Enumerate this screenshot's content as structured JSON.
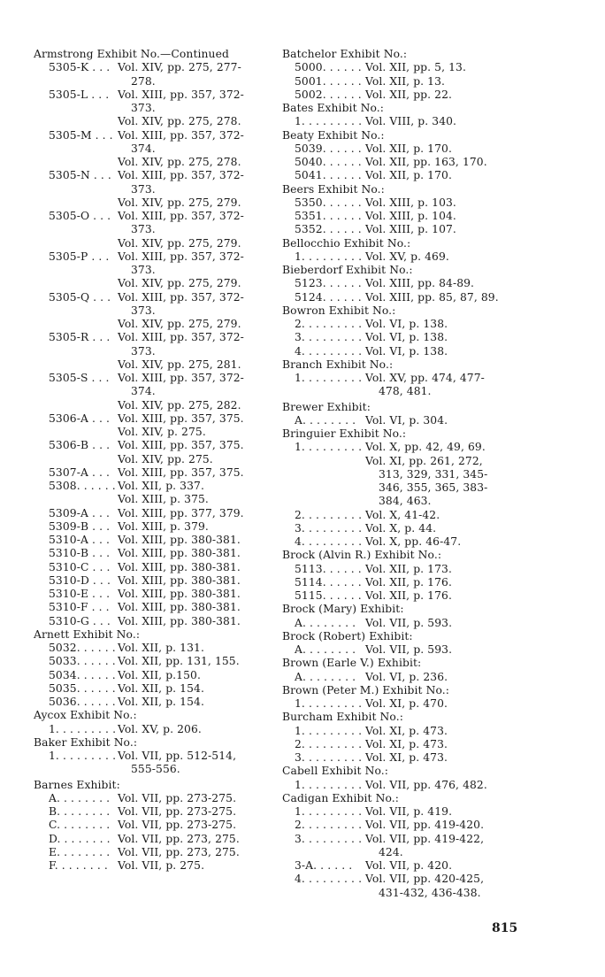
{
  "page_number": "815",
  "columns": [
    {
      "lines": [
        {
          "t": "h",
          "k": "Armstrong Exhibit No.—Continued"
        },
        {
          "t": "e",
          "k": "5305-K . . .",
          "v": "Vol. XIV, pp. 275, 277-"
        },
        {
          "t": "c",
          "v": "278."
        },
        {
          "t": "e",
          "k": "5305-L . . .",
          "v": "Vol. XIII, pp. 357, 372-"
        },
        {
          "t": "c",
          "v": "373."
        },
        {
          "t": "e",
          "k": "",
          "v": "Vol. XIV, pp. 275, 278."
        },
        {
          "t": "e",
          "k": "5305-M . . .",
          "v": "Vol. XIII, pp. 357, 372-"
        },
        {
          "t": "c",
          "v": "374."
        },
        {
          "t": "e",
          "k": "",
          "v": "Vol. XIV, pp. 275, 278."
        },
        {
          "t": "e",
          "k": "5305-N . . .",
          "v": "Vol. XIII, pp. 357, 372-"
        },
        {
          "t": "c",
          "v": "373."
        },
        {
          "t": "e",
          "k": "",
          "v": "Vol. XIV, pp. 275, 279."
        },
        {
          "t": "e",
          "k": "5305-O . . .",
          "v": "Vol. XIII, pp. 357, 372-"
        },
        {
          "t": "c",
          "v": "373."
        },
        {
          "t": "e",
          "k": "",
          "v": "Vol. XIV, pp. 275, 279."
        },
        {
          "t": "e",
          "k": "5305-P . . .",
          "v": "Vol. XIII, pp. 357, 372-"
        },
        {
          "t": "c",
          "v": "373."
        },
        {
          "t": "e",
          "k": "",
          "v": "Vol. XIV, pp. 275, 279."
        },
        {
          "t": "e",
          "k": "5305-Q . . .",
          "v": "Vol. XIII, pp. 357, 372-"
        },
        {
          "t": "c",
          "v": "373."
        },
        {
          "t": "e",
          "k": "",
          "v": "Vol. XIV, pp.  275, 279."
        },
        {
          "t": "e",
          "k": "5305-R . . .",
          "v": "Vol. XIII, pp. 357, 372-"
        },
        {
          "t": "c",
          "v": "373."
        },
        {
          "t": "e",
          "k": "",
          "v": "Vol. XIV, pp. 275, 281."
        },
        {
          "t": "e",
          "k": "5305-S . . .",
          "v": "Vol. XIII, pp. 357, 372-"
        },
        {
          "t": "c",
          "v": "374."
        },
        {
          "t": "e",
          "k": "",
          "v": "Vol. XIV, pp. 275, 282."
        },
        {
          "t": "e",
          "k": "5306-A . . .",
          "v": "Vol. XIII, pp. 357, 375."
        },
        {
          "t": "e",
          "k": "",
          "v": "Vol. XIV, p. 275."
        },
        {
          "t": "e",
          "k": "5306-B . . .",
          "v": "Vol. XIII, pp. 357, 375."
        },
        {
          "t": "e",
          "k": "",
          "v": "Vol. XIV, pp. 275."
        },
        {
          "t": "e",
          "k": "5307-A . . .",
          "v": "Vol. XIII, pp. 357, 375."
        },
        {
          "t": "e",
          "k": "5308. . . . . .",
          "v": "Vol. XII, p. 337."
        },
        {
          "t": "e",
          "k": "",
          "v": "Vol. XIII, p. 375."
        },
        {
          "t": "e",
          "k": "5309-A . . .",
          "v": "Vol. XIII, pp. 377, 379."
        },
        {
          "t": "e",
          "k": "5309-B . . .",
          "v": "Vol. XIII, p. 379."
        },
        {
          "t": "e",
          "k": "5310-A . . .",
          "v": "Vol. XIII, pp. 380-381."
        },
        {
          "t": "e",
          "k": "5310-B . . .",
          "v": "Vol. XIII, pp. 380-381."
        },
        {
          "t": "e",
          "k": "5310-C . . .",
          "v": "Vol. XIII, pp. 380-381."
        },
        {
          "t": "e",
          "k": "5310-D . . .",
          "v": "Vol. XIII, pp. 380-381."
        },
        {
          "t": "e",
          "k": "5310-E . . .",
          "v": "Vol. XIII, pp. 380-381."
        },
        {
          "t": "e",
          "k": "5310-F . . .",
          "v": "Vol. XIII, pp. 380-381."
        },
        {
          "t": "e",
          "k": "5310-G . . .",
          "v": "Vol. XIII, pp. 380-381."
        },
        {
          "t": "h",
          "k": "Arnett Exhibit No.:"
        },
        {
          "t": "e",
          "k": "5032. . . . . .",
          "v": "Vol. XII, p. 131."
        },
        {
          "t": "e",
          "k": "5033. . . . . .",
          "v": "Vol. XII, pp. 131, 155."
        },
        {
          "t": "e",
          "k": "5034. . . . . .",
          "v": "Vol. XII, p.150."
        },
        {
          "t": "e",
          "k": "5035. . . . . .",
          "v": "Vol. XII, p. 154."
        },
        {
          "t": "e",
          "k": "5036. . . . . .",
          "v": "Vol. XII, p. 154."
        },
        {
          "t": "h",
          "k": "Aycox Exhibit No.:"
        },
        {
          "t": "e",
          "k": "1. . . . . . . . .",
          "v": "Vol. XV, p. 206."
        },
        {
          "t": "h",
          "k": "Baker Exhibit No.:"
        },
        {
          "t": "e",
          "k": "1. . . . . . . . .",
          "v": "Vol.  VII,  pp.  512-514,"
        },
        {
          "t": "c",
          "v": "555-556."
        },
        {
          "t": "h",
          "k": "Barnes Exhibit:",
          "gap": true
        },
        {
          "t": "e",
          "k": "A. . . . . . . .",
          "v": "Vol. VII, pp. 273-275."
        },
        {
          "t": "e",
          "k": "B. . . . . . . .",
          "v": "Vol. VII, pp. 273-275."
        },
        {
          "t": "e",
          "k": "C. . . . . . . .",
          "v": "Vol. VII, pp. 273-275."
        },
        {
          "t": "e",
          "k": "D. . . . . . . .",
          "v": "Vol. VII, pp. 273, 275."
        },
        {
          "t": "e",
          "k": "E. . . . . . . .",
          "v": "Vol. VII, pp. 273, 275."
        },
        {
          "t": "e",
          "k": "F. . . . . . . .",
          "v": "Vol. VII, p. 275."
        }
      ]
    },
    {
      "lines": [
        {
          "t": "h",
          "k": "Batchelor Exhibit No.:"
        },
        {
          "t": "e",
          "k": "5000. . . . . .",
          "v": "Vol. XII, pp. 5, 13."
        },
        {
          "t": "e",
          "k": "5001. . . . . .",
          "v": "Vol. XII, p. 13."
        },
        {
          "t": "e",
          "k": "5002. . . . . .",
          "v": "Vol. XII, pp. 22."
        },
        {
          "t": "h",
          "k": "Bates Exhibit No.:"
        },
        {
          "t": "e",
          "k": "1. . . . . . . . .",
          "v": "Vol. VIII, p. 340."
        },
        {
          "t": "h",
          "k": "Beaty Exhibit No.:"
        },
        {
          "t": "e",
          "k": "5039. . . . . .",
          "v": "Vol. XII, p. 170."
        },
        {
          "t": "e",
          "k": "5040. . . . . .",
          "v": "Vol. XII, pp. 163, 170."
        },
        {
          "t": "e",
          "k": "5041. . . . . .",
          "v": "Vol. XII, p. 170."
        },
        {
          "t": "h",
          "k": "Beers Exhibit No.:"
        },
        {
          "t": "e",
          "k": "5350. . . . . .",
          "v": "Vol. XIII, p. 103."
        },
        {
          "t": "e",
          "k": "5351. . . . . .",
          "v": "Vol. XIII, p. 104."
        },
        {
          "t": "e",
          "k": "5352. . . . . .",
          "v": "Vol. XIII, p. 107."
        },
        {
          "t": "h",
          "k": "Bellocchio Exhibit No.:"
        },
        {
          "t": "e",
          "k": "1. . . . . . . . .",
          "v": "Vol. XV, p. 469."
        },
        {
          "t": "h",
          "k": "Bieberdorf Exhibit No.:"
        },
        {
          "t": "e",
          "k": "5123. . . . . .",
          "v": "Vol. XIII, pp. 84-89."
        },
        {
          "t": "e",
          "k": "5124. . . . . .",
          "v": "Vol. XIII, pp. 85, 87, 89."
        },
        {
          "t": "h",
          "k": "Bowron Exhibit No.:"
        },
        {
          "t": "e",
          "k": "2. . . . . . . . .",
          "v": "Vol. VI, p. 138."
        },
        {
          "t": "e",
          "k": "3. . . . . . . . .",
          "v": "Vol. VI, p. 138."
        },
        {
          "t": "e",
          "k": "4. . . . . . . . .",
          "v": "Vol. VI, p. 138."
        },
        {
          "t": "h",
          "k": "Branch Exhibit No.:"
        },
        {
          "t": "e",
          "k": "1. . . . . . . . .",
          "v": "Vol. XV, pp. 474, 477-"
        },
        {
          "t": "c",
          "v": "478, 481."
        },
        {
          "t": "h",
          "k": "Brewer Exhibit:",
          "gap": true
        },
        {
          "t": "e",
          "k": "A. . . . . . . .",
          "v": "Vol. VI, p. 304."
        },
        {
          "t": "h",
          "k": "Bringuier Exhibit No.:"
        },
        {
          "t": "e",
          "k": "1. . . . . . . . .",
          "v": "Vol. X, pp. 42, 49, 69."
        },
        {
          "t": "e",
          "k": "",
          "v": "Vol.  XI,  pp.  261,  272,"
        },
        {
          "t": "c",
          "v": "313,  329,  331,  345-"
        },
        {
          "t": "c",
          "v": "346,  355,  365,  383-"
        },
        {
          "t": "c",
          "v": "384, 463."
        },
        {
          "t": "e",
          "k": "2. . . . . . . . .",
          "v": "Vol. X, 41-42."
        },
        {
          "t": "e",
          "k": "3. . . . . . . . .",
          "v": "Vol. X, p. 44."
        },
        {
          "t": "e",
          "k": "4. . . . . . . . .",
          "v": "Vol. X, pp. 46-47."
        },
        {
          "t": "h",
          "k": "Brock (Alvin R.) Exhibit No.:"
        },
        {
          "t": "e",
          "k": "5113. . . . . .",
          "v": "Vol. XII, p. 173."
        },
        {
          "t": "e",
          "k": "5114. . . . . .",
          "v": "Vol. XII, p. 176."
        },
        {
          "t": "e",
          "k": "5115. . . . . .",
          "v": "Vol. XII, p. 176."
        },
        {
          "t": "h",
          "k": "Brock (Mary) Exhibit:"
        },
        {
          "t": "e",
          "k": "A. . . . . . . .",
          "v": "Vol. VII, p. 593."
        },
        {
          "t": "h",
          "k": "Brock (Robert) Exhibit:"
        },
        {
          "t": "e",
          "k": "A. . . . . . . .",
          "v": "Vol. VII, p. 593."
        },
        {
          "t": "h",
          "k": "Brown (Earle V.) Exhibit:"
        },
        {
          "t": "e",
          "k": "A. . . . . . . .",
          "v": "Vol. VI, p. 236."
        },
        {
          "t": "h",
          "k": "Brown (Peter M.) Exhibit No.:"
        },
        {
          "t": "e",
          "k": "1. . . . . . . . .",
          "v": "Vol. XI, p. 470."
        },
        {
          "t": "h",
          "k": "Burcham Exhibit No.:"
        },
        {
          "t": "e",
          "k": "1. . . . . . . . .",
          "v": "Vol. XI, p. 473."
        },
        {
          "t": "e",
          "k": "2. . . . . . . . .",
          "v": "Vol. XI, p. 473."
        },
        {
          "t": "e",
          "k": "3. . . . . . . . .",
          "v": "Vol. XI, p. 473."
        },
        {
          "t": "h",
          "k": "Cabell Exhibit No.:"
        },
        {
          "t": "e",
          "k": "1. . . . . . . . .",
          "v": "Vol. VII, pp. 476, 482."
        },
        {
          "t": "h",
          "k": "Cadigan Exhibit No.:"
        },
        {
          "t": "e",
          "k": "1. . . . . . . . .",
          "v": "Vol. VII, p. 419."
        },
        {
          "t": "e",
          "k": "2. . . . . . . . .",
          "v": "Vol. VII, pp. 419-420."
        },
        {
          "t": "e",
          "k": "3. . . . . . . . .",
          "v": "Vol.  VII,  pp.  419-422,"
        },
        {
          "t": "c",
          "v": "424."
        },
        {
          "t": "e",
          "k": "3-A. . . . . .",
          "v": "Vol. VII, p. 420."
        },
        {
          "t": "e",
          "k": "4. . . . . . . . .",
          "v": "Vol.  VII,  pp.  420-425,"
        },
        {
          "t": "c",
          "v": "431-432, 436-438."
        }
      ]
    }
  ]
}
